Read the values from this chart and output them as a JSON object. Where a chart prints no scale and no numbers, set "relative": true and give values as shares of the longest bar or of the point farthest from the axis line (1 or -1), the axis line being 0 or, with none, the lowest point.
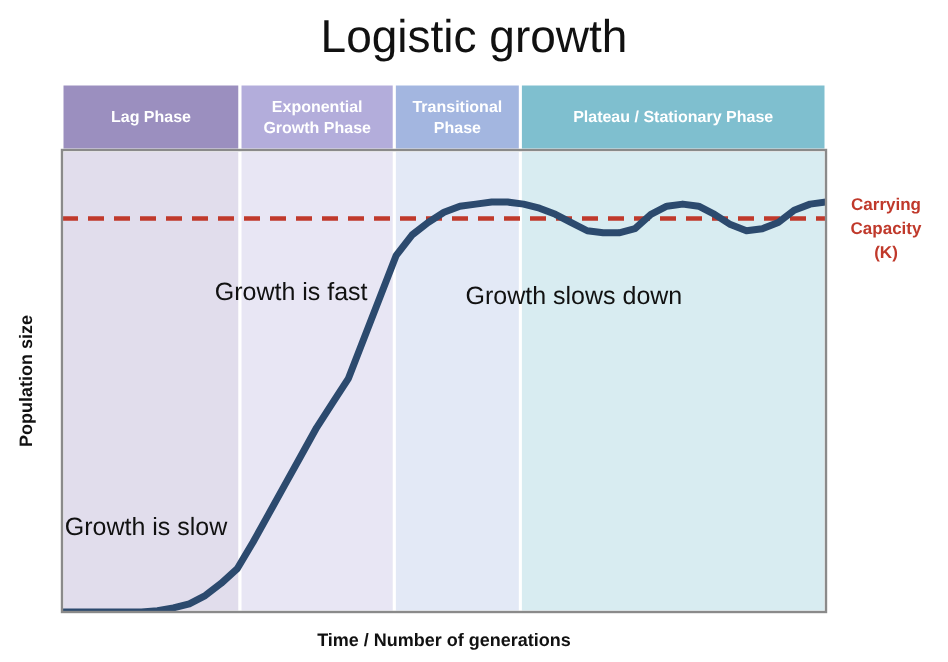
{
  "chart_data": {
    "type": "line",
    "title": "Logistic growth",
    "xlabel": "Time / Number of generations",
    "ylabel": "Population size",
    "relative": true,
    "categories": [
      null,
      null,
      null,
      null,
      null,
      null,
      null,
      null,
      null,
      null,
      null,
      null,
      null,
      null,
      null,
      null,
      null,
      null,
      null,
      null,
      null,
      null,
      null,
      null,
      null,
      null,
      null,
      null,
      null,
      null,
      null,
      null,
      null,
      null,
      null,
      null,
      null,
      null,
      null,
      null,
      null,
      null,
      null,
      null,
      null,
      null,
      null,
      null,
      null
    ],
    "series": [
      {
        "color": "#2c4a6e",
        "values": [
          0,
          0,
          0,
          0,
          0,
          0,
          0.003,
          0.01,
          0.02,
          0.04,
          0.07,
          0.105,
          0.17,
          0.24,
          0.31,
          0.38,
          0.45,
          0.51,
          0.57,
          0.67,
          0.77,
          0.87,
          0.92,
          0.95,
          0.975,
          0.99,
          0.995,
          1,
          1,
          0.995,
          0.985,
          0.97,
          0.95,
          0.93,
          0.925,
          0.925,
          0.935,
          0.97,
          0.99,
          0.995,
          0.99,
          0.97,
          0.945,
          0.93,
          0.935,
          0.95,
          0.98,
          0.995,
          1
        ]
      }
    ],
    "marker": "none",
    "line_style": "solid",
    "grid": false,
    "legend": false,
    "ref_lines": [
      {
        "axis": "y",
        "value": 0.96,
        "label": "Carrying Capacity (K)",
        "color": "#c0392b",
        "line_style": "dashed"
      }
    ],
    "annotations": [
      "Lag Phase",
      "Exponential Growth Phase",
      "Transitional Phase",
      "Plateau / Stationary Phase",
      "Growth is slow",
      "Growth is fast",
      "Growth slows down"
    ]
  }
}
